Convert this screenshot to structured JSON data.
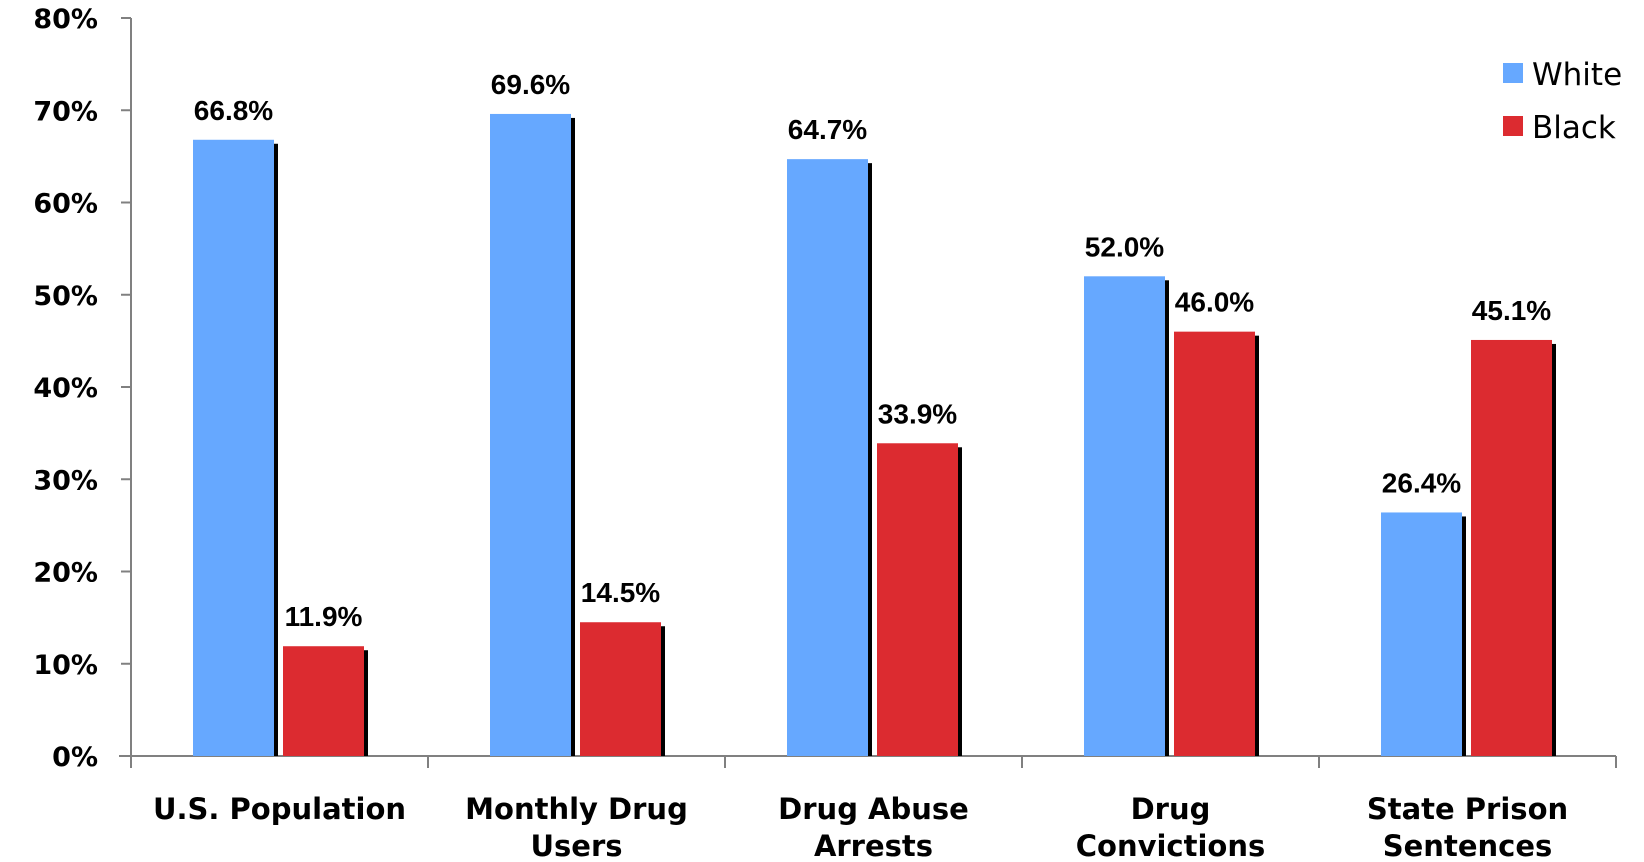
{
  "chart_data": {
    "type": "bar",
    "categories": [
      [
        "U.S. Population"
      ],
      [
        "Monthly Drug",
        "Users"
      ],
      [
        "Drug Abuse",
        "Arrests"
      ],
      [
        "Drug",
        "Convictions"
      ],
      [
        "State Prison",
        "Sentences"
      ]
    ],
    "series": [
      {
        "name": "White",
        "color": "#66A8FF",
        "values": [
          66.8,
          69.6,
          64.7,
          52.0,
          26.4
        ],
        "labels": [
          "66.8%",
          "69.6%",
          "64.7%",
          "52.0%",
          "26.4%"
        ]
      },
      {
        "name": "Black",
        "color": "#DC2B30",
        "values": [
          11.9,
          14.5,
          33.9,
          46.0,
          45.1
        ],
        "labels": [
          "11.9%",
          "14.5%",
          "33.9%",
          "46.0%",
          "45.1%"
        ]
      }
    ],
    "yticks": [
      "0%",
      "10%",
      "20%",
      "30%",
      "40%",
      "50%",
      "60%",
      "70%",
      "80%"
    ],
    "ylim": [
      0,
      80
    ],
    "legend_position": "top-right",
    "grid": false
  }
}
